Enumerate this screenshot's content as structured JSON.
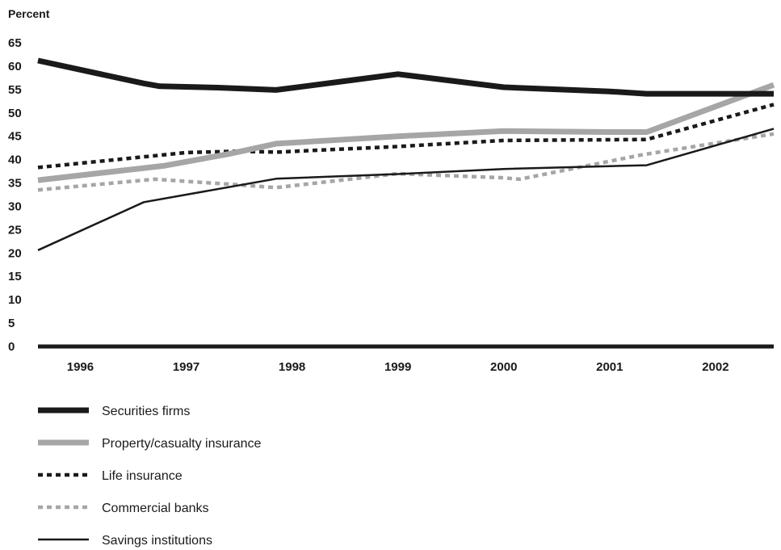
{
  "chart_data": {
    "type": "line",
    "ylabel": "Percent",
    "xlabel": "",
    "ylim": [
      0,
      65
    ],
    "yticks": [
      0,
      5,
      10,
      15,
      20,
      25,
      30,
      35,
      40,
      45,
      50,
      55,
      60,
      65
    ],
    "xlim": [
      1995.6,
      2002.55
    ],
    "xticks": [
      1996,
      1997,
      1998,
      1999,
      2000,
      2001,
      2002
    ],
    "grid": false,
    "legend_placement": "bottom-left",
    "series": [
      {
        "name": "Securities firms",
        "style": "thick-solid",
        "color": "#1a1a1a",
        "x": [
          1995.6,
          1996.6,
          1996.75,
          1997.3,
          1997.85,
          1998.5,
          1999.0,
          2000.0,
          2001.0,
          2001.35,
          2002.55
        ],
        "y": [
          61.2,
          56.3,
          55.7,
          55.4,
          54.9,
          56.8,
          58.3,
          55.5,
          54.6,
          54.1,
          54.1
        ]
      },
      {
        "name": "Property/casualty insurance",
        "style": "thick-gray",
        "color": "#a6a6a6",
        "x": [
          1995.6,
          1996.8,
          1997.4,
          1997.85,
          1999.0,
          2000.0,
          2001.0,
          2001.35,
          2002.55
        ],
        "y": [
          35.6,
          38.7,
          41.2,
          43.4,
          45.0,
          46.1,
          45.9,
          45.9,
          56.0
        ]
      },
      {
        "name": "Life insurance",
        "style": "thick-dotted",
        "color": "#1a1a1a",
        "x": [
          1995.6,
          1997.0,
          1997.5,
          1997.85,
          1999.0,
          2000.0,
          2001.35,
          2002.55
        ],
        "y": [
          38.3,
          41.5,
          41.8,
          41.6,
          42.8,
          44.1,
          44.3,
          51.8
        ]
      },
      {
        "name": "Commercial banks",
        "style": "thick-dotted-gray",
        "color": "#a6a6a6",
        "x": [
          1995.6,
          1996.7,
          1997.5,
          1997.85,
          1999.0,
          2000.0,
          2000.15,
          2001.3,
          2002.55
        ],
        "y": [
          33.5,
          35.8,
          34.6,
          34.0,
          37.0,
          36.1,
          35.8,
          41.0,
          45.5
        ]
      },
      {
        "name": "Savings institutions",
        "style": "thin-solid",
        "color": "#1a1a1a",
        "x": [
          1995.6,
          1996.6,
          1997.85,
          1999.0,
          2000.0,
          2001.0,
          2001.35,
          2002.55
        ],
        "y": [
          20.6,
          30.9,
          35.9,
          36.9,
          38.0,
          38.6,
          38.8,
          46.6
        ]
      }
    ]
  }
}
